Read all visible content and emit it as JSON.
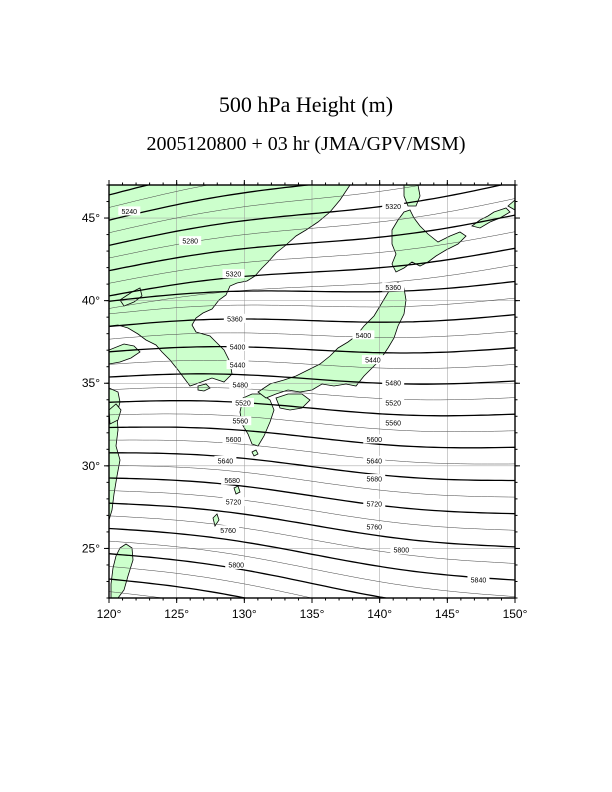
{
  "title": "500 hPa Height (m)",
  "subtitle": "2005120800 + 03 hr (JMA/GPV/MSM)",
  "map": {
    "lon_range": [
      120,
      150
    ],
    "lat_range": [
      22,
      47
    ],
    "lon_ticks": [
      120,
      125,
      130,
      135,
      140,
      145,
      150
    ],
    "lat_ticks": [
      25,
      30,
      35,
      40,
      45
    ],
    "lon_tick_labels": [
      "120°",
      "125°",
      "130°",
      "135°",
      "140°",
      "145°",
      "150°"
    ],
    "lat_tick_labels": [
      "25°",
      "30°",
      "35°",
      "40°",
      "45°"
    ],
    "land_color": "#ccffcc",
    "ocean_color": "#ffffff",
    "grid": true
  },
  "contours": {
    "variable": "500 hPa geopotential height",
    "units": "m",
    "labeled_levels": [
      {
        "value": 5240,
        "label": "5240",
        "lon": 121.5,
        "lat": 45.4
      },
      {
        "value": 5280,
        "label": "5280",
        "lon": 126.0,
        "lat": 43.6
      },
      {
        "value": 5320,
        "label": "5320",
        "lon": 129.2,
        "lat": 41.6
      },
      {
        "value": 5320,
        "label": "5320",
        "lon": 141.0,
        "lat": 45.7
      },
      {
        "value": 5360,
        "label": "5360",
        "lon": 129.3,
        "lat": 38.9
      },
      {
        "value": 5360,
        "label": "5360",
        "lon": 141.0,
        "lat": 40.8
      },
      {
        "value": 5400,
        "label": "5400",
        "lon": 129.5,
        "lat": 37.2
      },
      {
        "value": 5400,
        "label": "5400",
        "lon": 138.8,
        "lat": 37.9
      },
      {
        "value": 5440,
        "label": "5440",
        "lon": 129.5,
        "lat": 36.1
      },
      {
        "value": 5440,
        "label": "5440",
        "lon": 139.5,
        "lat": 36.4
      },
      {
        "value": 5480,
        "label": "5480",
        "lon": 129.7,
        "lat": 34.9
      },
      {
        "value": 5480,
        "label": "5480",
        "lon": 141.0,
        "lat": 35.0
      },
      {
        "value": 5520,
        "label": "5520",
        "lon": 129.9,
        "lat": 33.8
      },
      {
        "value": 5520,
        "label": "5520",
        "lon": 141.0,
        "lat": 33.8
      },
      {
        "value": 5560,
        "label": "5560",
        "lon": 129.7,
        "lat": 32.7
      },
      {
        "value": 5560,
        "label": "5560",
        "lon": 141.0,
        "lat": 32.6
      },
      {
        "value": 5600,
        "label": "5600",
        "lon": 129.2,
        "lat": 31.6
      },
      {
        "value": 5600,
        "label": "5600",
        "lon": 139.6,
        "lat": 31.6
      },
      {
        "value": 5640,
        "label": "5640",
        "lon": 128.6,
        "lat": 30.3
      },
      {
        "value": 5640,
        "label": "5640",
        "lon": 139.6,
        "lat": 30.3
      },
      {
        "value": 5680,
        "label": "5680",
        "lon": 129.1,
        "lat": 29.1
      },
      {
        "value": 5680,
        "label": "5680",
        "lon": 139.6,
        "lat": 29.2
      },
      {
        "value": 5720,
        "label": "5720",
        "lon": 129.2,
        "lat": 27.8
      },
      {
        "value": 5720,
        "label": "5720",
        "lon": 139.6,
        "lat": 27.7
      },
      {
        "value": 5760,
        "label": "5760",
        "lon": 128.8,
        "lat": 26.1
      },
      {
        "value": 5760,
        "label": "5760",
        "lon": 139.6,
        "lat": 26.3
      },
      {
        "value": 5800,
        "label": "5800",
        "lon": 129.4,
        "lat": 24.0
      },
      {
        "value": 5800,
        "label": "5800",
        "lon": 141.6,
        "lat": 24.9
      },
      {
        "value": 5840,
        "label": "5840",
        "lon": 147.3,
        "lat": 23.1
      }
    ]
  }
}
